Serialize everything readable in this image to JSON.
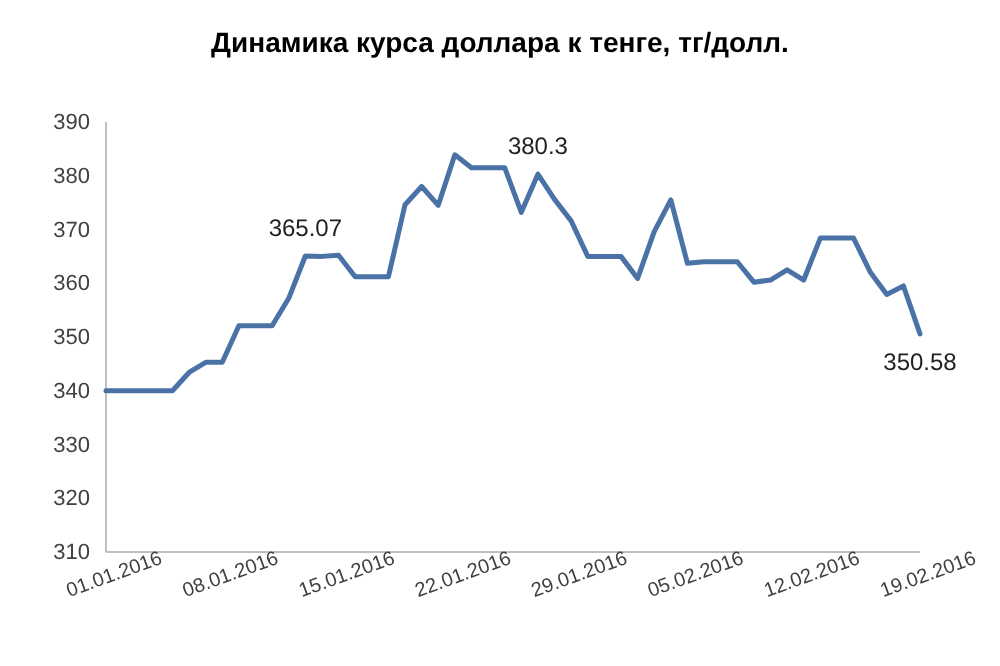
{
  "chart_data": {
    "type": "line",
    "title": "Динамика курса доллара к тенге, тг/долл.",
    "x": [
      "2016-01-01",
      "2016-01-02",
      "2016-01-03",
      "2016-01-04",
      "2016-01-05",
      "2016-01-06",
      "2016-01-07",
      "2016-01-08",
      "2016-01-09",
      "2016-01-10",
      "2016-01-11",
      "2016-01-12",
      "2016-01-13",
      "2016-01-14",
      "2016-01-15",
      "2016-01-16",
      "2016-01-17",
      "2016-01-18",
      "2016-01-19",
      "2016-01-20",
      "2016-01-21",
      "2016-01-22",
      "2016-01-23",
      "2016-01-24",
      "2016-01-25",
      "2016-01-26",
      "2016-01-27",
      "2016-01-28",
      "2016-01-29",
      "2016-01-30",
      "2016-01-31",
      "2016-02-01",
      "2016-02-02",
      "2016-02-03",
      "2016-02-04",
      "2016-02-05",
      "2016-02-06",
      "2016-02-07",
      "2016-02-08",
      "2016-02-09",
      "2016-02-10",
      "2016-02-11",
      "2016-02-12",
      "2016-02-13",
      "2016-02-14",
      "2016-02-15",
      "2016-02-16",
      "2016-02-17",
      "2016-02-18",
      "2016-02-19"
    ],
    "series": [
      {
        "color": "#4a72a6",
        "values": [
          340,
          340,
          340,
          340,
          340,
          343.4,
          345.3,
          345.3,
          352.1,
          352.1,
          352.1,
          357.2,
          365.07,
          365,
          365.2,
          361.2,
          361.2,
          361.2,
          374.6,
          378,
          374.5,
          383.9,
          381.5,
          381.5,
          381.5,
          373.2,
          380.3,
          375.6,
          371.6,
          365,
          365,
          365,
          360.9,
          369.6,
          375.5,
          363.7,
          364,
          364,
          364,
          360.2,
          360.6,
          362.5,
          360.6,
          368.4,
          368.4,
          368.4,
          362.1,
          357.9,
          359.5,
          350.58
        ]
      }
    ],
    "xlim": [
      "2016-01-01",
      "2016-02-19"
    ],
    "xticks": [
      {
        "value": "2016-01-01",
        "label": "01.01.2016"
      },
      {
        "value": "2016-01-08",
        "label": "08.01.2016"
      },
      {
        "value": "2016-01-15",
        "label": "15.01.2016"
      },
      {
        "value": "2016-01-22",
        "label": "22.01.2016"
      },
      {
        "value": "2016-01-29",
        "label": "29.01.2016"
      },
      {
        "value": "2016-02-05",
        "label": "05.02.2016"
      },
      {
        "value": "2016-02-12",
        "label": "12.02.2016"
      },
      {
        "value": "2016-02-19",
        "label": "19.02.2016"
      }
    ],
    "ylim": [
      310,
      390
    ],
    "yticks": [
      310,
      320,
      330,
      340,
      350,
      360,
      370,
      380,
      390
    ],
    "annotations": [
      {
        "text": "365.07",
        "x": "2016-01-13",
        "y": 365.07
      },
      {
        "text": "380.3",
        "x": "2016-01-27",
        "y": 380.3
      },
      {
        "text": "350.58",
        "x": "2016-02-19",
        "y": 350.58
      }
    ],
    "grid": false,
    "marker": "none",
    "line_style": "solid"
  }
}
